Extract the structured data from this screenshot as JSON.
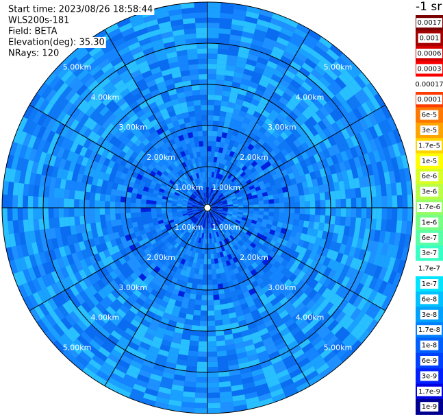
{
  "header": {
    "lines": [
      "Start time: 2023/08/26 18:58:44",
      "WLS200s-181",
      "Field: BETA",
      "Elevation(deg): 35.30",
      "NRays: 120"
    ]
  },
  "range_labels": [
    "1.00km",
    "2.00km",
    "3.00km",
    "4.00km",
    "5.00km"
  ],
  "colorbar": {
    "unit": "-1 sr",
    "entries": [
      {
        "label": "0.0017",
        "color": "#7a0000"
      },
      {
        "label": "0.001",
        "color": "#a40000"
      },
      {
        "label": "0.0006",
        "color": "#d20000"
      },
      {
        "label": "0.0003",
        "color": "#f80000"
      },
      {
        "label": "0.00017",
        "color": "#ffffff"
      },
      {
        "label": "0.0001",
        "color": "#ff3c00"
      },
      {
        "label": "6e-5",
        "color": "#ff7800"
      },
      {
        "label": "3e-5",
        "color": "#ffa400"
      },
      {
        "label": "1.7e-5",
        "color": "#ffd400"
      },
      {
        "label": "1e-5",
        "color": "#ffff00"
      },
      {
        "label": "6e-6",
        "color": "#d8ff26"
      },
      {
        "label": "3e-6",
        "color": "#b8ff46"
      },
      {
        "label": "1.7e-6",
        "color": "#98ff66"
      },
      {
        "label": "1e-6",
        "color": "#78ff86"
      },
      {
        "label": "6e-7",
        "color": "#58ffa6"
      },
      {
        "label": "3e-7",
        "color": "#38ffc6"
      },
      {
        "label": "1.7e-7",
        "color": "#ffffff"
      },
      {
        "label": "1e-7",
        "color": "#00e4ff"
      },
      {
        "label": "6e-8",
        "color": "#00c0ff"
      },
      {
        "label": "3e-8",
        "color": "#00a0ff"
      },
      {
        "label": "1.7e-8",
        "color": "#0080ff"
      },
      {
        "label": "1e-8",
        "color": "#0060ff"
      },
      {
        "label": "6e-9",
        "color": "#0040ff"
      },
      {
        "label": "3e-9",
        "color": "#0020ff"
      },
      {
        "label": "1.7e-9",
        "color": "#0000e0"
      },
      {
        "label": "1e-9",
        "color": "#000090"
      }
    ]
  }
}
